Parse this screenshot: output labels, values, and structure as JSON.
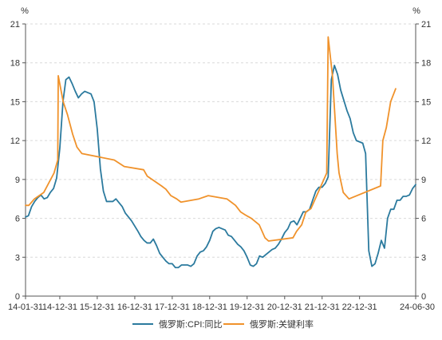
{
  "chart_data": {
    "type": "line",
    "title": "",
    "y_unit_left": "%",
    "y_unit_right": "%",
    "ylim": [
      0,
      21
    ],
    "yticks": [
      0,
      3,
      6,
      9,
      12,
      15,
      18,
      21
    ],
    "xlim": [
      "2014-01-31",
      "2024-06-30"
    ],
    "xtick_labels": [
      {
        "date": "2014-01-31",
        "label": "14-01-31"
      },
      {
        "date": "2014-12-31",
        "label": "14-12-31"
      },
      {
        "date": "2015-12-31",
        "label": "15-12-31"
      },
      {
        "date": "2016-12-31",
        "label": "16-12-31"
      },
      {
        "date": "2017-12-31",
        "label": "17-12-31"
      },
      {
        "date": "2018-12-31",
        "label": "18-12-31"
      },
      {
        "date": "2019-12-31",
        "label": "19-12-31"
      },
      {
        "date": "2020-12-31",
        "label": "20-12-31"
      },
      {
        "date": "2021-12-31",
        "label": "21-12-31"
      },
      {
        "date": "2022-12-31",
        "label": "22-12-31"
      },
      {
        "date": "2024-06-30",
        "label": "24-06-30"
      }
    ],
    "grid": "horizontal-dashed",
    "legend_position": "bottom",
    "series": [
      {
        "name": "俄罗斯:CPI:同比",
        "color": "#2b7a9e",
        "points": [
          [
            "2014-01-31",
            6.1
          ],
          [
            "2014-02-28",
            6.2
          ],
          [
            "2014-03-31",
            6.9
          ],
          [
            "2014-04-30",
            7.3
          ],
          [
            "2014-05-31",
            7.6
          ],
          [
            "2014-06-30",
            7.8
          ],
          [
            "2014-07-31",
            7.5
          ],
          [
            "2014-08-31",
            7.6
          ],
          [
            "2014-09-30",
            8.0
          ],
          [
            "2014-10-31",
            8.3
          ],
          [
            "2014-11-30",
            9.1
          ],
          [
            "2014-12-31",
            11.4
          ],
          [
            "2015-01-31",
            15.0
          ],
          [
            "2015-02-28",
            16.7
          ],
          [
            "2015-03-31",
            16.9
          ],
          [
            "2015-04-30",
            16.4
          ],
          [
            "2015-05-31",
            15.8
          ],
          [
            "2015-06-30",
            15.3
          ],
          [
            "2015-07-31",
            15.6
          ],
          [
            "2015-08-31",
            15.8
          ],
          [
            "2015-09-30",
            15.7
          ],
          [
            "2015-10-31",
            15.6
          ],
          [
            "2015-11-30",
            15.0
          ],
          [
            "2015-12-31",
            12.9
          ],
          [
            "2016-01-31",
            9.8
          ],
          [
            "2016-02-29",
            8.1
          ],
          [
            "2016-03-31",
            7.3
          ],
          [
            "2016-04-30",
            7.3
          ],
          [
            "2016-05-31",
            7.3
          ],
          [
            "2016-06-30",
            7.5
          ],
          [
            "2016-07-31",
            7.2
          ],
          [
            "2016-08-31",
            6.9
          ],
          [
            "2016-09-30",
            6.4
          ],
          [
            "2016-10-31",
            6.1
          ],
          [
            "2016-11-30",
            5.8
          ],
          [
            "2016-12-31",
            5.4
          ],
          [
            "2017-01-31",
            5.0
          ],
          [
            "2017-02-28",
            4.6
          ],
          [
            "2017-03-31",
            4.3
          ],
          [
            "2017-04-30",
            4.1
          ],
          [
            "2017-05-31",
            4.1
          ],
          [
            "2017-06-30",
            4.4
          ],
          [
            "2017-07-31",
            3.9
          ],
          [
            "2017-08-31",
            3.3
          ],
          [
            "2017-09-30",
            3.0
          ],
          [
            "2017-10-31",
            2.7
          ],
          [
            "2017-11-30",
            2.5
          ],
          [
            "2017-12-31",
            2.5
          ],
          [
            "2018-01-31",
            2.2
          ],
          [
            "2018-02-28",
            2.2
          ],
          [
            "2018-03-31",
            2.4
          ],
          [
            "2018-04-30",
            2.4
          ],
          [
            "2018-05-31",
            2.4
          ],
          [
            "2018-06-30",
            2.3
          ],
          [
            "2018-07-31",
            2.5
          ],
          [
            "2018-08-31",
            3.1
          ],
          [
            "2018-09-30",
            3.4
          ],
          [
            "2018-10-31",
            3.5
          ],
          [
            "2018-11-30",
            3.8
          ],
          [
            "2018-12-31",
            4.3
          ],
          [
            "2019-01-31",
            5.0
          ],
          [
            "2019-02-28",
            5.2
          ],
          [
            "2019-03-31",
            5.3
          ],
          [
            "2019-04-30",
            5.2
          ],
          [
            "2019-05-31",
            5.1
          ],
          [
            "2019-06-30",
            4.7
          ],
          [
            "2019-07-31",
            4.6
          ],
          [
            "2019-08-31",
            4.3
          ],
          [
            "2019-09-30",
            4.0
          ],
          [
            "2019-10-31",
            3.8
          ],
          [
            "2019-11-30",
            3.5
          ],
          [
            "2019-12-31",
            3.0
          ],
          [
            "2020-01-31",
            2.4
          ],
          [
            "2020-02-29",
            2.3
          ],
          [
            "2020-03-31",
            2.5
          ],
          [
            "2020-04-30",
            3.1
          ],
          [
            "2020-05-31",
            3.0
          ],
          [
            "2020-06-30",
            3.2
          ],
          [
            "2020-07-31",
            3.4
          ],
          [
            "2020-08-31",
            3.6
          ],
          [
            "2020-09-30",
            3.7
          ],
          [
            "2020-10-31",
            4.0
          ],
          [
            "2020-11-30",
            4.4
          ],
          [
            "2020-12-31",
            4.9
          ],
          [
            "2021-01-31",
            5.2
          ],
          [
            "2021-02-28",
            5.7
          ],
          [
            "2021-03-31",
            5.8
          ],
          [
            "2021-04-30",
            5.5
          ],
          [
            "2021-05-31",
            6.0
          ],
          [
            "2021-06-30",
            6.5
          ],
          [
            "2021-07-31",
            6.5
          ],
          [
            "2021-08-31",
            6.7
          ],
          [
            "2021-09-30",
            7.4
          ],
          [
            "2021-10-31",
            8.1
          ],
          [
            "2021-11-30",
            8.4
          ],
          [
            "2021-12-31",
            8.4
          ],
          [
            "2022-01-31",
            8.7
          ],
          [
            "2022-02-28",
            9.2
          ],
          [
            "2022-03-31",
            16.7
          ],
          [
            "2022-04-30",
            17.8
          ],
          [
            "2022-05-31",
            17.1
          ],
          [
            "2022-06-30",
            15.9
          ],
          [
            "2022-07-31",
            15.1
          ],
          [
            "2022-08-31",
            14.3
          ],
          [
            "2022-09-30",
            13.7
          ],
          [
            "2022-10-31",
            12.6
          ],
          [
            "2022-11-30",
            12.0
          ],
          [
            "2022-12-31",
            11.9
          ],
          [
            "2023-01-31",
            11.8
          ],
          [
            "2023-02-28",
            11.0
          ],
          [
            "2023-03-31",
            3.5
          ],
          [
            "2023-04-30",
            2.3
          ],
          [
            "2023-05-31",
            2.5
          ],
          [
            "2023-06-30",
            3.3
          ],
          [
            "2023-07-31",
            4.3
          ],
          [
            "2023-08-31",
            3.7
          ],
          [
            "2023-09-30",
            6.0
          ],
          [
            "2023-10-31",
            6.7
          ],
          [
            "2023-11-30",
            6.7
          ],
          [
            "2023-12-31",
            7.4
          ],
          [
            "2024-01-31",
            7.4
          ],
          [
            "2024-02-29",
            7.7
          ],
          [
            "2024-03-31",
            7.7
          ],
          [
            "2024-04-30",
            7.8
          ],
          [
            "2024-05-31",
            8.3
          ],
          [
            "2024-06-30",
            8.6
          ]
        ]
      },
      {
        "name": "俄罗斯:关键利率",
        "color": "#f0922b",
        "points": [
          [
            "2014-01-31",
            7.0
          ],
          [
            "2014-03-03",
            7.0
          ],
          [
            "2014-03-04",
            7.0
          ],
          [
            "2014-04-28",
            7.5
          ],
          [
            "2014-07-28",
            8.0
          ],
          [
            "2014-11-05",
            9.5
          ],
          [
            "2014-12-11",
            10.5
          ],
          [
            "2014-12-16",
            17.0
          ],
          [
            "2015-02-02",
            15.0
          ],
          [
            "2015-03-16",
            14.0
          ],
          [
            "2015-05-05",
            12.5
          ],
          [
            "2015-06-16",
            11.5
          ],
          [
            "2015-08-03",
            11.0
          ],
          [
            "2016-06-14",
            10.5
          ],
          [
            "2016-09-19",
            10.0
          ],
          [
            "2017-03-27",
            9.75
          ],
          [
            "2017-05-02",
            9.25
          ],
          [
            "2017-09-18",
            8.5
          ],
          [
            "2017-10-30",
            8.25
          ],
          [
            "2017-12-18",
            7.75
          ],
          [
            "2018-02-12",
            7.5
          ],
          [
            "2018-03-26",
            7.25
          ],
          [
            "2018-09-17",
            7.5
          ],
          [
            "2018-12-17",
            7.75
          ],
          [
            "2019-06-17",
            7.5
          ],
          [
            "2019-07-29",
            7.25
          ],
          [
            "2019-09-09",
            7.0
          ],
          [
            "2019-10-28",
            6.5
          ],
          [
            "2019-12-16",
            6.25
          ],
          [
            "2020-02-10",
            6.0
          ],
          [
            "2020-04-27",
            5.5
          ],
          [
            "2020-06-22",
            4.5
          ],
          [
            "2020-07-27",
            4.25
          ],
          [
            "2021-03-22",
            4.5
          ],
          [
            "2021-04-26",
            5.0
          ],
          [
            "2021-06-15",
            5.5
          ],
          [
            "2021-07-26",
            6.5
          ],
          [
            "2021-09-13",
            6.75
          ],
          [
            "2021-10-25",
            7.5
          ],
          [
            "2021-12-20",
            8.5
          ],
          [
            "2022-02-14",
            9.5
          ],
          [
            "2022-02-28",
            20.0
          ],
          [
            "2022-04-11",
            17.0
          ],
          [
            "2022-05-04",
            14.0
          ],
          [
            "2022-05-27",
            11.0
          ],
          [
            "2022-06-14",
            9.5
          ],
          [
            "2022-07-25",
            8.0
          ],
          [
            "2022-09-19",
            7.5
          ],
          [
            "2023-07-24",
            8.5
          ],
          [
            "2023-08-15",
            12.0
          ],
          [
            "2023-09-18",
            13.0
          ],
          [
            "2023-10-30",
            15.0
          ],
          [
            "2023-12-18",
            16.0
          ]
        ]
      }
    ]
  }
}
